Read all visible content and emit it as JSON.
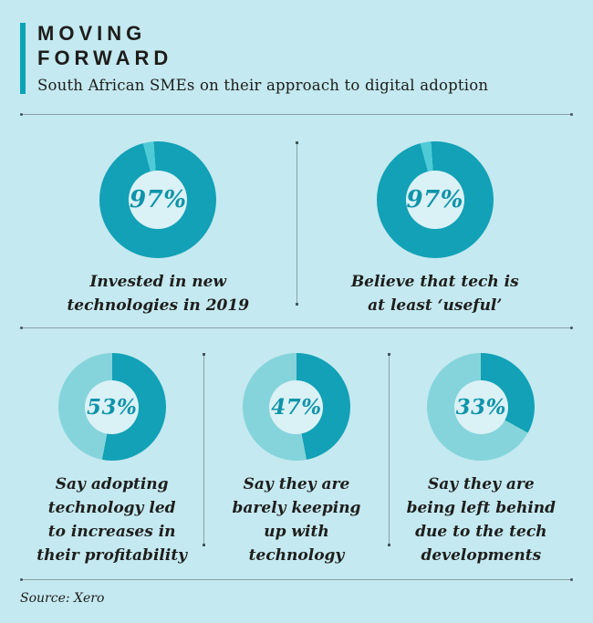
{
  "header": {
    "title": "MOVING\nFORWARD",
    "subtitle": "South African SMEs on their approach to digital adoption"
  },
  "footer": {
    "source": "Source: Xero"
  },
  "colors": {
    "background": "#c4e9f0",
    "accent_bar": "#0ca3b8",
    "divider": "#8ba0a6",
    "divider_dot": "#44565c",
    "heading_text": "#1d1d1b",
    "body_text": "#1e1e1c",
    "percent_text": "#0f94aa",
    "hole": "#daf1f6"
  },
  "chart_data": {
    "type": "pie",
    "variant": "donut-set",
    "title": "MOVING FORWARD",
    "subtitle": "South African SMEs on their approach to digital adoption",
    "source": "Source: Xero",
    "unit": "percent",
    "start_angle": "top",
    "direction": "clockwise",
    "charts": [
      {
        "value": 97,
        "label": "97%",
        "caption": "Invested in new\ntechnologies in 2019",
        "segment_color": "#12a1b6",
        "remainder_color": "#4ecbd7",
        "rotation_deg": -4,
        "row": "top"
      },
      {
        "value": 97,
        "label": "97%",
        "caption": "Believe that tech is\nat least ‘useful’",
        "segment_color": "#12a1b6",
        "remainder_color": "#4ecbd7",
        "rotation_deg": -4,
        "row": "top"
      },
      {
        "value": 53,
        "label": "53%",
        "caption": "Say adopting\ntechnology led\nto increases in\ntheir profitability",
        "segment_color": "#12a1b6",
        "remainder_color": "#85d4db",
        "rotation_deg": 0,
        "row": "bottom"
      },
      {
        "value": 47,
        "label": "47%",
        "caption": "Say they are\nbarely keeping\nup with\ntechnology",
        "segment_color": "#12a1b6",
        "remainder_color": "#85d4db",
        "rotation_deg": 0,
        "row": "bottom"
      },
      {
        "value": 33,
        "label": "33%",
        "caption": "Say they are\nbeing left behind\ndue to the tech\ndevelopments",
        "segment_color": "#12a1b6",
        "remainder_color": "#85d4db",
        "rotation_deg": 0,
        "row": "bottom"
      }
    ]
  }
}
